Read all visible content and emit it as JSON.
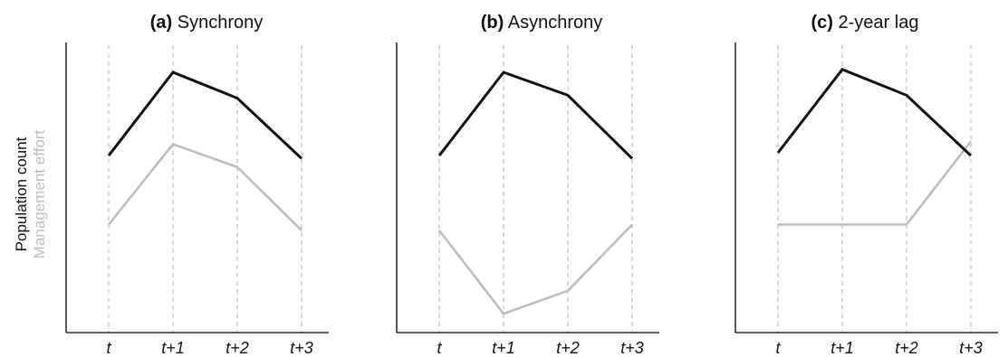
{
  "ylabel": {
    "primary": "Population count",
    "secondary": "Management effort"
  },
  "colors": {
    "population": "#111111",
    "management": "#bdbdbd",
    "axis": "#000000",
    "gridline": "#b3b3b3"
  },
  "chart_data": [
    {
      "type": "line",
      "title_prefix": "(a)",
      "title": "Synchrony",
      "categories": [
        "t",
        "t+1",
        "t+2",
        "t+3"
      ],
      "ylim": [
        0,
        100
      ],
      "grid": "vertical dashed at each category",
      "series": [
        {
          "name": "Population count",
          "color": "#111111",
          "values": [
            60,
            89,
            80,
            59
          ]
        },
        {
          "name": "Management effort",
          "color": "#bdbdbd",
          "values": [
            36,
            64,
            56,
            34
          ]
        }
      ]
    },
    {
      "type": "line",
      "title_prefix": "(b)",
      "title": "Asynchrony",
      "categories": [
        "t",
        "t+1",
        "t+2",
        "t+3"
      ],
      "ylim": [
        0,
        100
      ],
      "grid": "vertical dashed at each category",
      "series": [
        {
          "name": "Population count",
          "color": "#111111",
          "values": [
            60,
            89,
            81,
            59
          ]
        },
        {
          "name": "Management effort",
          "color": "#bdbdbd",
          "values": [
            34,
            5,
            13,
            36
          ]
        }
      ]
    },
    {
      "type": "line",
      "title_prefix": "(c)",
      "title": "2-year lag",
      "categories": [
        "t",
        "t+1",
        "t+2",
        "t+3"
      ],
      "ylim": [
        0,
        100
      ],
      "grid": "vertical dashed at each category",
      "series": [
        {
          "name": "Population count",
          "color": "#111111",
          "values": [
            61,
            90,
            81,
            60
          ]
        },
        {
          "name": "Management effort",
          "color": "#bdbdbd",
          "values": [
            36,
            36,
            36,
            65
          ]
        }
      ]
    }
  ]
}
